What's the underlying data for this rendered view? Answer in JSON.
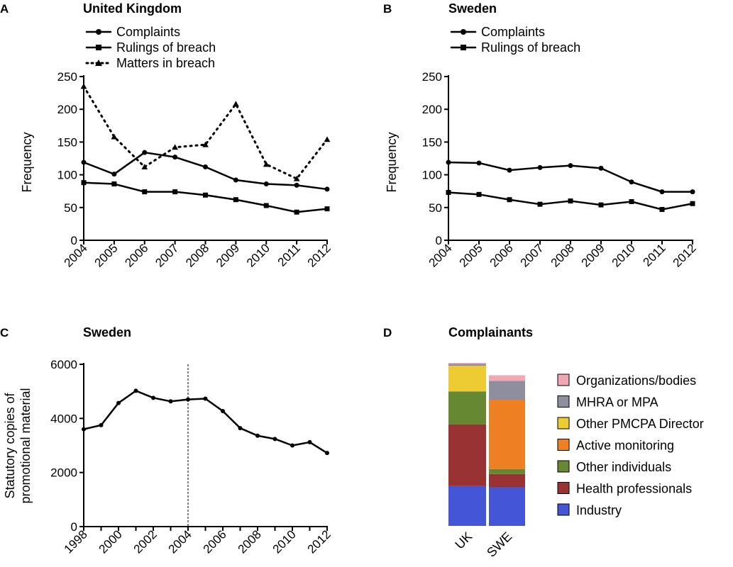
{
  "chart_data": [
    {
      "panel": "A",
      "type": "line",
      "title": "United Kingdom",
      "ylabel": "Frequency",
      "xlabel": "",
      "x": [
        "2004",
        "2005",
        "2006",
        "2007",
        "2008",
        "2009",
        "2010",
        "2011",
        "2012"
      ],
      "ylim": [
        0,
        250
      ],
      "yticks": [
        0,
        50,
        100,
        150,
        200,
        250
      ],
      "legend_position": "top-left",
      "series": [
        {
          "name": "Complaints",
          "marker": "circle",
          "line": "solid",
          "values": [
            119,
            101,
            134,
            127,
            112,
            92,
            86,
            84,
            78
          ]
        },
        {
          "name": "Rulings of breach",
          "marker": "square",
          "line": "solid",
          "values": [
            88,
            86,
            74,
            74,
            69,
            62,
            53,
            43,
            48
          ]
        },
        {
          "name": "Matters in breach",
          "marker": "triangle",
          "line": "dotted",
          "values": [
            235,
            158,
            112,
            142,
            146,
            208,
            116,
            94,
            154
          ]
        }
      ]
    },
    {
      "panel": "B",
      "type": "line",
      "title": "Sweden",
      "ylabel": "Frequency",
      "xlabel": "",
      "x": [
        "2004",
        "2005",
        "2006",
        "2007",
        "2008",
        "2009",
        "2010",
        "2011",
        "2012"
      ],
      "ylim": [
        0,
        250
      ],
      "yticks": [
        0,
        50,
        100,
        150,
        200,
        250
      ],
      "legend_position": "top-left",
      "series": [
        {
          "name": "Complaints",
          "marker": "circle",
          "line": "solid",
          "values": [
            119,
            118,
            107,
            111,
            114,
            110,
            89,
            74,
            74
          ]
        },
        {
          "name": "Rulings of breach",
          "marker": "square",
          "line": "solid",
          "values": [
            73,
            70,
            62,
            55,
            60,
            54,
            59,
            47,
            56
          ]
        }
      ]
    },
    {
      "panel": "C",
      "type": "line",
      "title": "Sweden",
      "ylabel_lines": [
        "Statutory copies of",
        "promotional material"
      ],
      "xlabel": "",
      "x": [
        1998,
        1999,
        2000,
        2001,
        2002,
        2003,
        2004,
        2005,
        2006,
        2007,
        2008,
        2009,
        2010,
        2011,
        2012
      ],
      "xticks": [
        "1998",
        "2000",
        "2002",
        "2004",
        "2006",
        "2008",
        "2010",
        "2012"
      ],
      "xlim": [
        1998,
        2012
      ],
      "ylim": [
        0,
        6000
      ],
      "yticks": [
        0,
        2000,
        4000,
        6000
      ],
      "reference_line_x": 2004,
      "series": [
        {
          "name": "",
          "marker": "circle",
          "line": "solid",
          "values": [
            3600,
            3750,
            4570,
            5020,
            4760,
            4630,
            4700,
            4730,
            4270,
            3640,
            3360,
            3240,
            3000,
            3120,
            2720
          ]
        }
      ]
    },
    {
      "panel": "D",
      "type": "bar",
      "stacked": true,
      "normalized": true,
      "title": "Complainants",
      "categories": [
        "UK",
        "SWE"
      ],
      "legend_position": "right",
      "series": [
        {
          "name": "Industry",
          "color": "#4455d6",
          "values": [
            0.244,
            0.237
          ]
        },
        {
          "name": "Health professionals",
          "color": "#993333",
          "values": [
            0.378,
            0.081
          ]
        },
        {
          "name": "Other individuals",
          "color": "#668833",
          "values": [
            0.203,
            0.031
          ]
        },
        {
          "name": "Active monitoring",
          "color": "#ee7f22",
          "values": [
            0.0,
            0.425
          ]
        },
        {
          "name": "Other PMCPA Director",
          "color": "#eccb33",
          "values": [
            0.157,
            0.0
          ]
        },
        {
          "name": "MHRA or MPA",
          "color": "#8e8e9e",
          "values": [
            0.012,
            0.115
          ]
        },
        {
          "name": "Organizations/bodies",
          "color": "#f0a8b4",
          "values": [
            0.006,
            0.035
          ]
        }
      ],
      "legend_order": [
        "Organizations/bodies",
        "MHRA or MPA",
        "Other PMCPA Director",
        "Active monitoring",
        "Other individuals",
        "Health professionals",
        "Industry"
      ]
    }
  ],
  "panel_labels": [
    "A",
    "B",
    "C",
    "D"
  ]
}
